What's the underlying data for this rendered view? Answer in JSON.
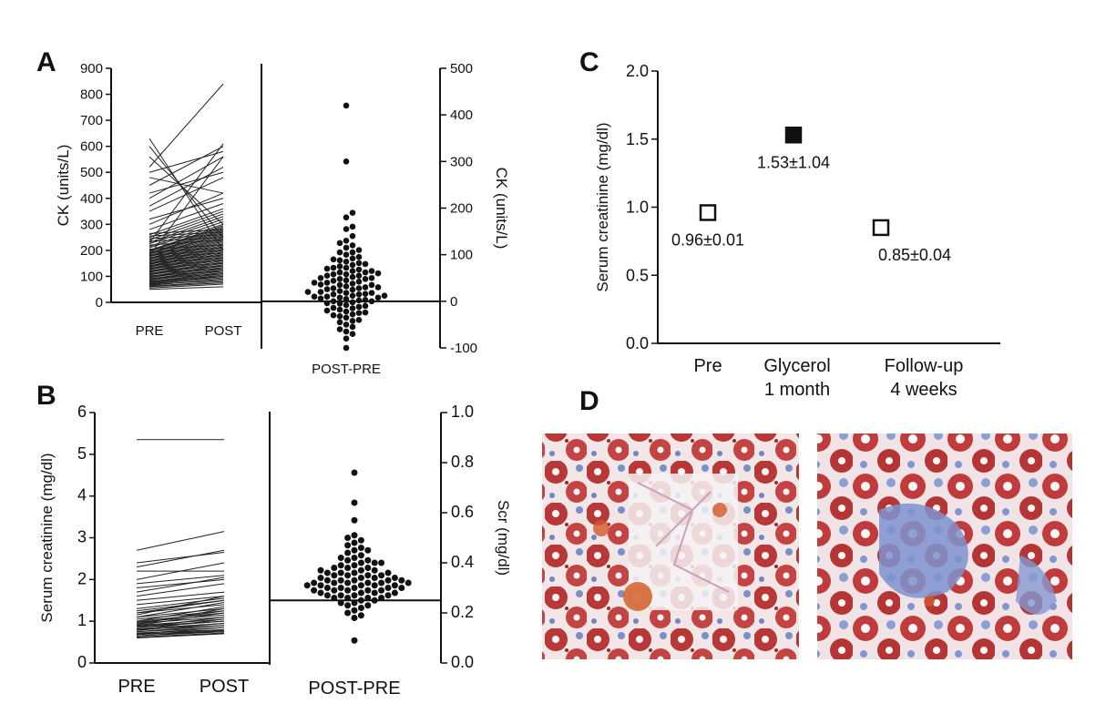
{
  "panels": {
    "a": "A",
    "b": "B",
    "c": "C",
    "d": "D"
  },
  "chart_data": [
    {
      "id": "A-left",
      "type": "line",
      "ylabel": "CK (units/L)",
      "categories": [
        "PRE",
        "POST"
      ],
      "ylim": [
        0,
        900
      ],
      "yticks": [
        0,
        100,
        200,
        300,
        400,
        500,
        600,
        700,
        800,
        900
      ],
      "pairs": [
        [
          50,
          60
        ],
        [
          55,
          70
        ],
        [
          60,
          75
        ],
        [
          62,
          80
        ],
        [
          65,
          90
        ],
        [
          68,
          85
        ],
        [
          70,
          95
        ],
        [
          72,
          100
        ],
        [
          75,
          105
        ],
        [
          78,
          110
        ],
        [
          80,
          115
        ],
        [
          82,
          100
        ],
        [
          85,
          120
        ],
        [
          88,
          125
        ],
        [
          90,
          130
        ],
        [
          92,
          110
        ],
        [
          95,
          135
        ],
        [
          98,
          140
        ],
        [
          100,
          145
        ],
        [
          102,
          120
        ],
        [
          105,
          150
        ],
        [
          108,
          155
        ],
        [
          110,
          160
        ],
        [
          112,
          130
        ],
        [
          115,
          165
        ],
        [
          118,
          170
        ],
        [
          120,
          175
        ],
        [
          122,
          140
        ],
        [
          125,
          180
        ],
        [
          128,
          185
        ],
        [
          130,
          190
        ],
        [
          132,
          150
        ],
        [
          135,
          195
        ],
        [
          138,
          200
        ],
        [
          140,
          205
        ],
        [
          142,
          160
        ],
        [
          145,
          210
        ],
        [
          148,
          215
        ],
        [
          150,
          220
        ],
        [
          152,
          170
        ],
        [
          155,
          225
        ],
        [
          158,
          230
        ],
        [
          160,
          235
        ],
        [
          162,
          180
        ],
        [
          165,
          240
        ],
        [
          168,
          245
        ],
        [
          170,
          250
        ],
        [
          172,
          190
        ],
        [
          175,
          255
        ],
        [
          178,
          260
        ],
        [
          180,
          265
        ],
        [
          182,
          200
        ],
        [
          185,
          270
        ],
        [
          188,
          275
        ],
        [
          190,
          280
        ],
        [
          192,
          210
        ],
        [
          195,
          285
        ],
        [
          198,
          290
        ],
        [
          200,
          295
        ],
        [
          205,
          220
        ],
        [
          210,
          300
        ],
        [
          215,
          310
        ],
        [
          220,
          240
        ],
        [
          225,
          320
        ],
        [
          230,
          330
        ],
        [
          235,
          250
        ],
        [
          240,
          340
        ],
        [
          245,
          260
        ],
        [
          250,
          350
        ],
        [
          255,
          270
        ],
        [
          260,
          360
        ],
        [
          265,
          280
        ],
        [
          280,
          380
        ],
        [
          300,
          420
        ],
        [
          320,
          400
        ],
        [
          350,
          480
        ],
        [
          370,
          520
        ],
        [
          400,
          560
        ],
        [
          420,
          500
        ],
        [
          450,
          600
        ],
        [
          480,
          420
        ],
        [
          500,
          580
        ],
        [
          520,
          840
        ],
        [
          560,
          300
        ],
        [
          600,
          250
        ],
        [
          630,
          200
        ],
        [
          230,
          610
        ],
        [
          180,
          560
        ]
      ]
    },
    {
      "id": "A-right",
      "type": "scatter",
      "ylabel": "CK (units/L)",
      "xlabel": "POST-PRE",
      "ylim": [
        -100,
        500
      ],
      "yticks": [
        -100,
        0,
        100,
        200,
        300,
        400,
        500
      ],
      "values": [
        420,
        300,
        190,
        180,
        160,
        155,
        130,
        125,
        120,
        110,
        105,
        100,
        95,
        90,
        88,
        85,
        82,
        80,
        78,
        75,
        72,
        70,
        68,
        65,
        62,
        60,
        58,
        55,
        52,
        50,
        50,
        48,
        45,
        42,
        40,
        40,
        38,
        35,
        32,
        30,
        30,
        28,
        25,
        22,
        20,
        20,
        18,
        15,
        12,
        10,
        10,
        8,
        5,
        3,
        2,
        0,
        0,
        -2,
        -5,
        -8,
        -10,
        -12,
        -15,
        -18,
        -20,
        -22,
        -25,
        -28,
        -30,
        -35,
        -40,
        -45,
        -50,
        -55,
        -60,
        -65,
        -70,
        -80,
        -100,
        65,
        58,
        44,
        36,
        26,
        16,
        6,
        -4,
        -14,
        -24,
        72,
        35,
        12,
        -32,
        -42,
        48,
        15,
        28,
        62,
        92,
        140,
        115,
        105,
        8,
        18,
        55
      ]
    },
    {
      "id": "B-left",
      "type": "line",
      "ylabel": "Serum creatinine (mg/dl)",
      "categories": [
        "PRE",
        "POST"
      ],
      "ylim": [
        0,
        6
      ],
      "yticks": [
        0,
        1,
        2,
        3,
        4,
        5,
        6
      ],
      "pairs": [
        [
          5.35,
          5.35
        ],
        [
          2.7,
          3.15
        ],
        [
          2.4,
          2.65
        ],
        [
          2.3,
          2.7
        ],
        [
          2.2,
          2.2
        ],
        [
          2.0,
          2.4
        ],
        [
          1.9,
          2.1
        ],
        [
          1.8,
          2.0
        ],
        [
          1.7,
          2.05
        ],
        [
          1.6,
          1.9
        ],
        [
          1.5,
          1.7
        ],
        [
          1.4,
          1.6
        ],
        [
          1.3,
          1.55
        ],
        [
          1.2,
          1.5
        ],
        [
          1.2,
          1.4
        ],
        [
          1.1,
          1.3
        ],
        [
          1.1,
          1.45
        ],
        [
          1.05,
          1.25
        ],
        [
          1.0,
          1.2
        ],
        [
          1.0,
          1.35
        ],
        [
          0.95,
          1.1
        ],
        [
          0.95,
          1.25
        ],
        [
          0.9,
          1.05
        ],
        [
          0.9,
          1.2
        ],
        [
          0.88,
          1.0
        ],
        [
          0.85,
          1.1
        ],
        [
          0.85,
          1.0
        ],
        [
          0.82,
          0.95
        ],
        [
          0.8,
          1.05
        ],
        [
          0.8,
          0.9
        ],
        [
          0.78,
          0.95
        ],
        [
          0.75,
          0.85
        ],
        [
          0.75,
          0.9
        ],
        [
          0.72,
          0.8
        ],
        [
          0.7,
          0.85
        ],
        [
          0.7,
          0.75
        ],
        [
          0.68,
          0.8
        ],
        [
          0.65,
          0.75
        ],
        [
          0.65,
          0.78
        ],
        [
          0.62,
          0.72
        ],
        [
          0.6,
          0.7
        ],
        [
          1.15,
          1.6
        ],
        [
          1.25,
          1.5
        ],
        [
          0.92,
          1.3
        ],
        [
          0.98,
          1.15
        ]
      ]
    },
    {
      "id": "B-right",
      "type": "scatter",
      "ylabel": "Scr (mg/dl)",
      "xlabel": "POST-PRE",
      "ylim": [
        0.0,
        1.0
      ],
      "yticks": [
        0.0,
        0.2,
        0.4,
        0.6,
        0.8,
        1.0
      ],
      "values": [
        0.76,
        0.64,
        0.57,
        0.51,
        0.5,
        0.49,
        0.48,
        0.47,
        0.46,
        0.45,
        0.45,
        0.44,
        0.43,
        0.42,
        0.42,
        0.41,
        0.41,
        0.4,
        0.4,
        0.39,
        0.39,
        0.38,
        0.38,
        0.37,
        0.37,
        0.37,
        0.36,
        0.36,
        0.36,
        0.35,
        0.35,
        0.35,
        0.34,
        0.34,
        0.34,
        0.33,
        0.33,
        0.33,
        0.33,
        0.32,
        0.32,
        0.32,
        0.32,
        0.31,
        0.31,
        0.31,
        0.31,
        0.3,
        0.3,
        0.3,
        0.3,
        0.29,
        0.29,
        0.29,
        0.29,
        0.28,
        0.28,
        0.28,
        0.27,
        0.27,
        0.27,
        0.26,
        0.26,
        0.26,
        0.25,
        0.25,
        0.24,
        0.24,
        0.23,
        0.23,
        0.22,
        0.21,
        0.2,
        0.19,
        0.18,
        0.09,
        0.34,
        0.36,
        0.32,
        0.3,
        0.28,
        0.33,
        0.35,
        0.31,
        0.29,
        0.27,
        0.38,
        0.26,
        0.4,
        0.32
      ]
    },
    {
      "id": "C",
      "type": "scatter",
      "ylabel": "Serum creatinine (mg/dl)",
      "categories": [
        "Pre",
        "Glycerol\n1 month",
        "Follow-up\n4 weeks"
      ],
      "ylim": [
        0.0,
        2.0
      ],
      "yticks": [
        "0.0",
        "0.5",
        "1.0",
        "1.5",
        "2.0"
      ],
      "values": [
        0.96,
        1.53,
        0.85
      ],
      "filled": [
        false,
        true,
        false
      ],
      "labels": [
        "0.96±0.01",
        "1.53±1.04",
        "0.85±0.04"
      ]
    }
  ],
  "micrographs": [
    "kidney-histology-left",
    "kidney-histology-right"
  ]
}
